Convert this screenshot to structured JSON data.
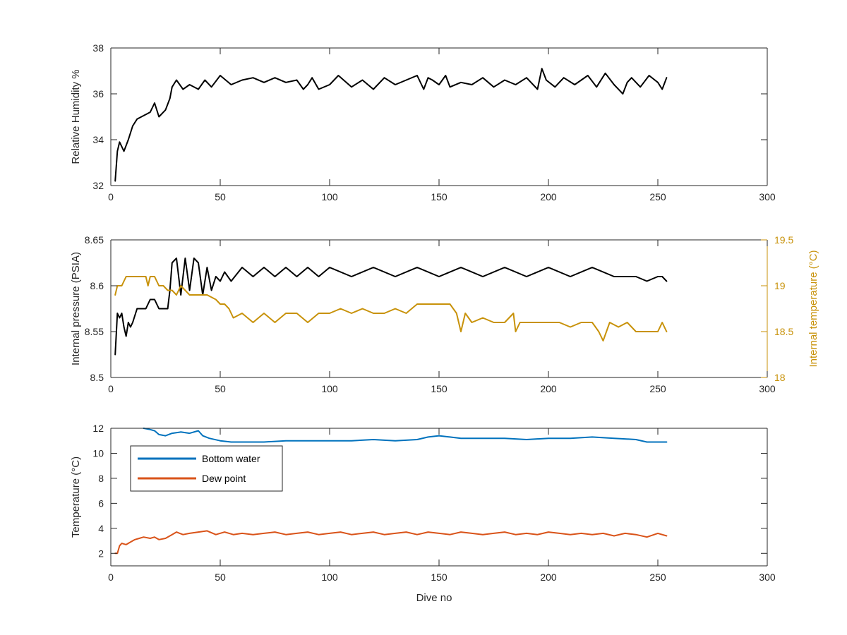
{
  "chart_data": [
    {
      "type": "line",
      "id": "humidity",
      "title": "",
      "xlabel": "",
      "ylabel": "Relative Humidity %",
      "xlim": [
        0,
        300
      ],
      "ylim": [
        32,
        38
      ],
      "xticks": [
        0,
        50,
        100,
        150,
        200,
        250,
        300
      ],
      "yticks": [
        32,
        34,
        36,
        38
      ],
      "grid": false,
      "series": [
        {
          "color": "#000000",
          "x": [
            2,
            3,
            4,
            6,
            8,
            10,
            12,
            14,
            18,
            20,
            22,
            25,
            27,
            28,
            30,
            33,
            36,
            40,
            43,
            46,
            50,
            55,
            60,
            65,
            70,
            75,
            80,
            85,
            88,
            90,
            92,
            95,
            100,
            104,
            110,
            115,
            120,
            125,
            130,
            135,
            140,
            143,
            145,
            147,
            150,
            153,
            155,
            160,
            165,
            170,
            175,
            180,
            185,
            190,
            195,
            197,
            199,
            203,
            207,
            212,
            218,
            222,
            226,
            230,
            234,
            236,
            238,
            242,
            246,
            250,
            252,
            254
          ],
          "y": [
            32.2,
            33.5,
            33.9,
            33.5,
            34.0,
            34.6,
            34.9,
            35.0,
            35.2,
            35.6,
            35.0,
            35.3,
            35.8,
            36.3,
            36.6,
            36.2,
            36.4,
            36.2,
            36.6,
            36.3,
            36.8,
            36.4,
            36.6,
            36.7,
            36.5,
            36.7,
            36.5,
            36.6,
            36.2,
            36.4,
            36.7,
            36.2,
            36.4,
            36.8,
            36.3,
            36.6,
            36.2,
            36.7,
            36.4,
            36.6,
            36.8,
            36.2,
            36.7,
            36.6,
            36.4,
            36.8,
            36.3,
            36.5,
            36.4,
            36.7,
            36.3,
            36.6,
            36.4,
            36.7,
            36.2,
            37.1,
            36.6,
            36.3,
            36.7,
            36.4,
            36.8,
            36.3,
            36.9,
            36.4,
            36.0,
            36.5,
            36.7,
            36.3,
            36.8,
            36.5,
            36.2,
            36.7
          ]
        }
      ]
    },
    {
      "type": "line",
      "id": "pressure-temperature",
      "title": "",
      "xlabel": "",
      "ylabel": "Internal pressure (PSIA)",
      "ylabel_right": "Internal temperature (°C)",
      "xlim": [
        0,
        300
      ],
      "ylim": [
        8.5,
        8.65
      ],
      "ylim_right": [
        18,
        19.5
      ],
      "xticks": [
        0,
        50,
        100,
        150,
        200,
        250,
        300
      ],
      "yticks": [
        8.5,
        8.55,
        8.6,
        8.65
      ],
      "yticks_right": [
        18,
        18.5,
        19,
        19.5
      ],
      "yticklabels_right": [
        "18",
        "18.5",
        "19",
        "19.5"
      ],
      "grid": false,
      "series": [
        {
          "axis": "left",
          "color": "#000000",
          "x": [
            2,
            3,
            4,
            5,
            6,
            7,
            8,
            9,
            10,
            12,
            14,
            16,
            17,
            18,
            20,
            22,
            24,
            26,
            27,
            28,
            30,
            32,
            34,
            36,
            38,
            40,
            42,
            44,
            46,
            48,
            50,
            52,
            55,
            60,
            65,
            70,
            75,
            80,
            85,
            90,
            95,
            100,
            110,
            120,
            130,
            140,
            150,
            160,
            170,
            180,
            190,
            200,
            210,
            220,
            230,
            240,
            245,
            250,
            252,
            254
          ],
          "y": [
            8.525,
            8.57,
            8.565,
            8.57,
            8.555,
            8.545,
            8.56,
            8.555,
            8.56,
            8.575,
            8.575,
            8.575,
            8.58,
            8.585,
            8.585,
            8.575,
            8.575,
            8.575,
            8.595,
            8.625,
            8.63,
            8.59,
            8.63,
            8.595,
            8.63,
            8.625,
            8.59,
            8.62,
            8.595,
            8.61,
            8.605,
            8.615,
            8.605,
            8.62,
            8.61,
            8.62,
            8.61,
            8.62,
            8.61,
            8.62,
            8.61,
            8.62,
            8.61,
            8.62,
            8.61,
            8.62,
            8.61,
            8.62,
            8.61,
            8.62,
            8.61,
            8.62,
            8.61,
            8.62,
            8.61,
            8.61,
            8.605,
            8.61,
            8.61,
            8.605
          ]
        },
        {
          "axis": "right",
          "color": "#C8920A",
          "x": [
            2,
            3,
            5,
            7,
            9,
            12,
            16,
            17,
            18,
            20,
            22,
            24,
            26,
            28,
            30,
            32,
            34,
            36,
            38,
            40,
            44,
            48,
            50,
            52,
            54,
            56,
            60,
            65,
            70,
            75,
            80,
            85,
            90,
            95,
            100,
            105,
            110,
            115,
            120,
            125,
            130,
            135,
            140,
            145,
            150,
            155,
            158,
            160,
            162,
            165,
            170,
            175,
            180,
            184,
            185,
            187,
            190,
            195,
            200,
            205,
            210,
            215,
            220,
            223,
            225,
            228,
            232,
            236,
            240,
            245,
            250,
            252,
            254
          ],
          "y": [
            18.9,
            19.0,
            19.0,
            19.1,
            19.1,
            19.1,
            19.1,
            19.0,
            19.1,
            19.1,
            19.0,
            19.0,
            18.95,
            18.95,
            18.9,
            19.0,
            18.95,
            18.9,
            18.9,
            18.9,
            18.9,
            18.85,
            18.8,
            18.8,
            18.75,
            18.65,
            18.7,
            18.6,
            18.7,
            18.6,
            18.7,
            18.7,
            18.6,
            18.7,
            18.7,
            18.75,
            18.7,
            18.75,
            18.7,
            18.7,
            18.75,
            18.7,
            18.8,
            18.8,
            18.8,
            18.8,
            18.7,
            18.5,
            18.7,
            18.6,
            18.65,
            18.6,
            18.6,
            18.7,
            18.5,
            18.6,
            18.6,
            18.6,
            18.6,
            18.6,
            18.55,
            18.6,
            18.6,
            18.5,
            18.4,
            18.6,
            18.55,
            18.6,
            18.5,
            18.5,
            18.5,
            18.6,
            18.5
          ]
        }
      ]
    },
    {
      "type": "line",
      "id": "temperature",
      "title": "",
      "xlabel": "Dive no",
      "ylabel": "Temperature (°C)",
      "xlim": [
        0,
        300
      ],
      "ylim": [
        1,
        12
      ],
      "xticks": [
        0,
        50,
        100,
        150,
        200,
        250,
        300
      ],
      "yticks": [
        2,
        4,
        6,
        8,
        10,
        12
      ],
      "grid": false,
      "legend": "top-left",
      "series": [
        {
          "name": "Bottom water",
          "color": "#0072BD",
          "x": [
            15,
            18,
            20,
            22,
            25,
            28,
            32,
            36,
            40,
            42,
            45,
            50,
            55,
            60,
            65,
            70,
            80,
            90,
            100,
            110,
            120,
            130,
            140,
            145,
            150,
            155,
            160,
            170,
            180,
            190,
            200,
            210,
            220,
            230,
            240,
            245,
            250,
            254
          ],
          "y": [
            12.0,
            11.9,
            11.8,
            11.5,
            11.4,
            11.6,
            11.7,
            11.6,
            11.8,
            11.4,
            11.2,
            11.0,
            10.9,
            10.9,
            10.9,
            10.9,
            11.0,
            11.0,
            11.0,
            11.0,
            11.1,
            11.0,
            11.1,
            11.3,
            11.4,
            11.3,
            11.2,
            11.2,
            11.2,
            11.1,
            11.2,
            11.2,
            11.3,
            11.2,
            11.1,
            10.9,
            10.9,
            10.9
          ]
        },
        {
          "name": "Dew point",
          "color": "#D95319",
          "x": [
            2,
            3,
            4,
            5,
            7,
            9,
            11,
            13,
            15,
            18,
            20,
            22,
            25,
            28,
            30,
            33,
            36,
            40,
            44,
            48,
            52,
            56,
            60,
            65,
            70,
            75,
            80,
            85,
            90,
            95,
            100,
            105,
            110,
            115,
            120,
            125,
            130,
            135,
            140,
            145,
            150,
            155,
            160,
            165,
            170,
            175,
            180,
            185,
            190,
            195,
            200,
            205,
            210,
            215,
            220,
            225,
            230,
            235,
            240,
            245,
            250,
            254
          ],
          "y": [
            2.0,
            2.0,
            2.6,
            2.8,
            2.7,
            2.9,
            3.1,
            3.2,
            3.3,
            3.2,
            3.3,
            3.1,
            3.2,
            3.5,
            3.7,
            3.5,
            3.6,
            3.7,
            3.8,
            3.5,
            3.7,
            3.5,
            3.6,
            3.5,
            3.6,
            3.7,
            3.5,
            3.6,
            3.7,
            3.5,
            3.6,
            3.7,
            3.5,
            3.6,
            3.7,
            3.5,
            3.6,
            3.7,
            3.5,
            3.7,
            3.6,
            3.5,
            3.7,
            3.6,
            3.5,
            3.6,
            3.7,
            3.5,
            3.6,
            3.5,
            3.7,
            3.6,
            3.5,
            3.6,
            3.5,
            3.6,
            3.4,
            3.6,
            3.5,
            3.3,
            3.6,
            3.4
          ]
        }
      ]
    }
  ]
}
